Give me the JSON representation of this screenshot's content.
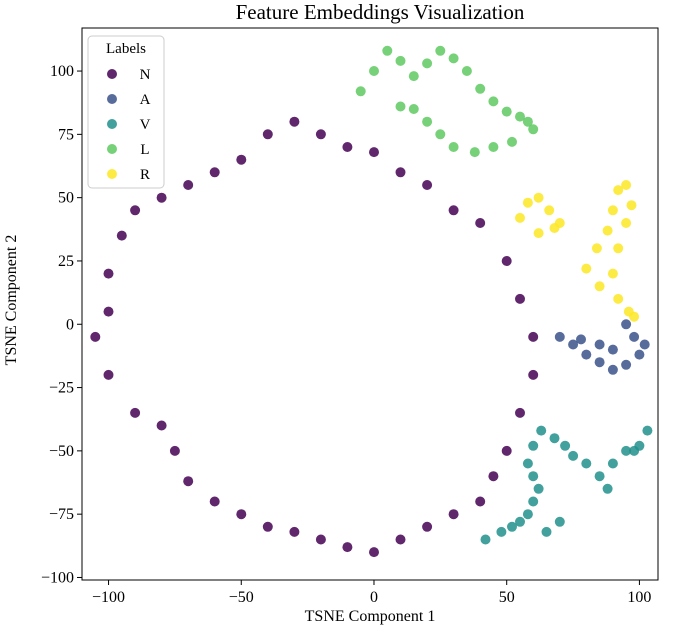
{
  "chart_data": {
    "type": "scatter",
    "title": "Feature Embeddings Visualization",
    "xlabel": "TSNE Component 1",
    "ylabel": "TSNE Component 2",
    "xlim": [
      -110,
      107
    ],
    "ylim": [
      -101,
      117
    ],
    "xticks": [
      -100,
      -50,
      0,
      50,
      100
    ],
    "yticks": [
      -100,
      -75,
      -50,
      -25,
      0,
      25,
      50,
      75,
      100
    ],
    "xtick_labels": [
      "−100",
      "−50",
      "0",
      "50",
      "100"
    ],
    "ytick_labels": [
      "−100",
      "−75",
      "−50",
      "−25",
      "0",
      "25",
      "50",
      "75",
      "100"
    ],
    "grid": false,
    "legend": {
      "title": "Labels",
      "placement": "top-left"
    },
    "series": [
      {
        "name": "N",
        "color": "#440154",
        "points": [
          [
            -100,
            20
          ],
          [
            -95,
            35
          ],
          [
            -90,
            45
          ],
          [
            -80,
            50
          ],
          [
            -70,
            55
          ],
          [
            -60,
            60
          ],
          [
            -50,
            65
          ],
          [
            -40,
            75
          ],
          [
            -30,
            80
          ],
          [
            -20,
            75
          ],
          [
            -10,
            70
          ],
          [
            0,
            68
          ],
          [
            10,
            60
          ],
          [
            20,
            55
          ],
          [
            30,
            45
          ],
          [
            40,
            40
          ],
          [
            50,
            25
          ],
          [
            55,
            10
          ],
          [
            60,
            -5
          ],
          [
            60,
            -20
          ],
          [
            55,
            -35
          ],
          [
            50,
            -50
          ],
          [
            45,
            -60
          ],
          [
            40,
            -70
          ],
          [
            30,
            -75
          ],
          [
            20,
            -80
          ],
          [
            10,
            -85
          ],
          [
            0,
            -90
          ],
          [
            -10,
            -88
          ],
          [
            -20,
            -85
          ],
          [
            -30,
            -82
          ],
          [
            -40,
            -80
          ],
          [
            -50,
            -75
          ],
          [
            -60,
            -70
          ],
          [
            -70,
            -62
          ],
          [
            -75,
            -50
          ],
          [
            -80,
            -40
          ],
          [
            -90,
            -35
          ],
          [
            -100,
            -20
          ],
          [
            -105,
            -5
          ],
          [
            -100,
            5
          ]
        ]
      },
      {
        "name": "A",
        "color": "#3b528b",
        "points": [
          [
            70,
            -5
          ],
          [
            75,
            -8
          ],
          [
            80,
            -12
          ],
          [
            85,
            -15
          ],
          [
            90,
            -18
          ],
          [
            95,
            -16
          ],
          [
            100,
            -12
          ],
          [
            102,
            -8
          ],
          [
            98,
            -5
          ],
          [
            95,
            0
          ],
          [
            90,
            -10
          ],
          [
            85,
            -8
          ],
          [
            78,
            -6
          ]
        ]
      },
      {
        "name": "V",
        "color": "#21918c",
        "points": [
          [
            42,
            -85
          ],
          [
            48,
            -82
          ],
          [
            52,
            -80
          ],
          [
            55,
            -78
          ],
          [
            58,
            -75
          ],
          [
            60,
            -70
          ],
          [
            62,
            -65
          ],
          [
            60,
            -60
          ],
          [
            58,
            -55
          ],
          [
            60,
            -48
          ],
          [
            63,
            -42
          ],
          [
            68,
            -45
          ],
          [
            72,
            -48
          ],
          [
            75,
            -52
          ],
          [
            80,
            -55
          ],
          [
            85,
            -60
          ],
          [
            90,
            -55
          ],
          [
            95,
            -50
          ],
          [
            100,
            -48
          ],
          [
            103,
            -42
          ],
          [
            98,
            -50
          ],
          [
            88,
            -65
          ],
          [
            70,
            -78
          ],
          [
            65,
            -82
          ]
        ]
      },
      {
        "name": "L",
        "color": "#5ec962",
        "points": [
          [
            -5,
            92
          ],
          [
            0,
            100
          ],
          [
            5,
            108
          ],
          [
            10,
            104
          ],
          [
            15,
            98
          ],
          [
            20,
            103
          ],
          [
            25,
            108
          ],
          [
            30,
            105
          ],
          [
            35,
            100
          ],
          [
            40,
            93
          ],
          [
            45,
            88
          ],
          [
            50,
            84
          ],
          [
            55,
            82
          ],
          [
            58,
            80
          ],
          [
            60,
            77
          ],
          [
            52,
            72
          ],
          [
            45,
            70
          ],
          [
            38,
            68
          ],
          [
            30,
            70
          ],
          [
            25,
            75
          ],
          [
            20,
            80
          ],
          [
            15,
            85
          ],
          [
            10,
            86
          ]
        ]
      },
      {
        "name": "R",
        "color": "#fde725",
        "points": [
          [
            55,
            42
          ],
          [
            58,
            48
          ],
          [
            62,
            50
          ],
          [
            66,
            45
          ],
          [
            70,
            40
          ],
          [
            68,
            38
          ],
          [
            62,
            36
          ],
          [
            80,
            22
          ],
          [
            84,
            30
          ],
          [
            88,
            37
          ],
          [
            90,
            45
          ],
          [
            92,
            53
          ],
          [
            95,
            55
          ],
          [
            97,
            47
          ],
          [
            95,
            40
          ],
          [
            92,
            30
          ],
          [
            90,
            20
          ],
          [
            92,
            10
          ],
          [
            96,
            5
          ],
          [
            98,
            3
          ],
          [
            85,
            15
          ]
        ]
      }
    ]
  }
}
